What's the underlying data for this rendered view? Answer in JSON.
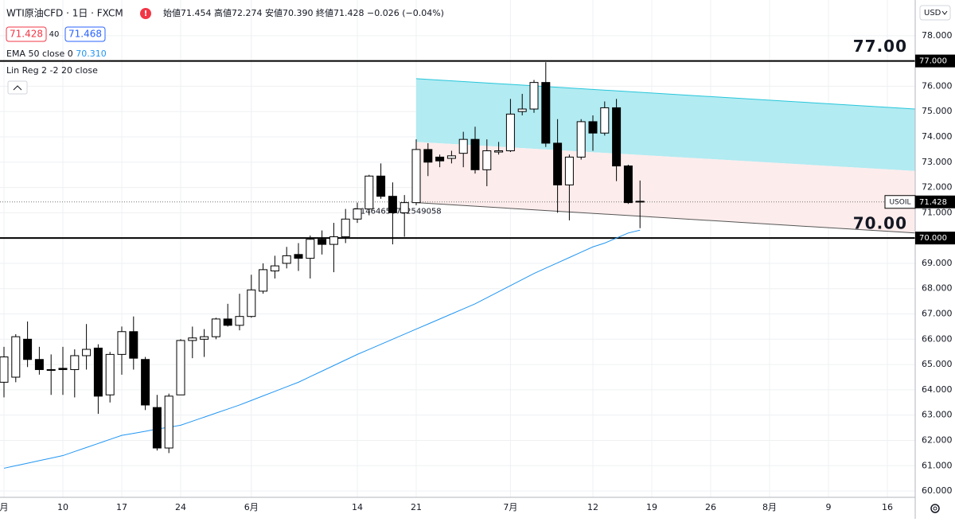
{
  "header": {
    "symbol": "WTI原油CFD · 1日 · FXCM",
    "ohlc": [
      {
        "label": "始値",
        "value": "71.454"
      },
      {
        "label": "高値",
        "value": "72.274"
      },
      {
        "label": "安値",
        "value": "70.390"
      },
      {
        "label": "終値",
        "value": "71.428"
      }
    ],
    "change": "−0.026 (−0.04%)",
    "bid": "71.428",
    "spread": "40",
    "ask": "71.468",
    "ema_label": "EMA 50 close 0",
    "ema_value": "70.310",
    "linreg_label": "Lin Reg 2 -2 20 close",
    "currency": "USD"
  },
  "chart_data": {
    "type": "candlestick",
    "categories": [
      "月",
      null,
      null,
      null,
      null,
      "10",
      null,
      null,
      null,
      null,
      "17",
      null,
      null,
      null,
      null,
      "24",
      null,
      null,
      null,
      null,
      null,
      "6月",
      null,
      null,
      null,
      null,
      null,
      null,
      null,
      null,
      "14",
      null,
      null,
      null,
      null,
      "21",
      null,
      null,
      null,
      null,
      null,
      null,
      null,
      "7月",
      null,
      null,
      null,
      null,
      null,
      null,
      "12",
      null,
      null,
      null,
      null,
      "19",
      null,
      null,
      null,
      null,
      "26",
      null,
      null,
      null,
      null,
      "8月",
      null,
      null,
      null,
      null,
      "9",
      null,
      null,
      null,
      null,
      "16"
    ],
    "open": [
      64.3,
      64.5,
      66.0,
      65.2,
      64.8,
      64.85,
      64.8,
      65.35,
      65.65,
      63.8,
      65.4,
      66.3,
      65.2,
      63.3,
      61.7,
      63.8,
      65.95,
      66.0,
      66.1,
      66.8,
      66.55,
      66.9,
      67.9,
      68.7,
      69.0,
      69.35,
      69.2,
      69.95,
      69.75,
      70.05,
      70.75,
      71.15,
      72.45,
      71.65,
      71.0,
      71.4,
      73.5,
      73.2,
      73.15,
      73.35,
      73.9,
      72.7,
      73.4,
      73.45,
      75.0,
      75.1,
      76.15,
      73.75,
      72.1,
      73.2,
      74.6,
      74.15,
      75.15,
      72.85,
      71.454,
      null,
      null,
      null,
      null,
      null,
      null,
      null,
      null,
      null,
      null,
      null,
      null,
      null,
      null,
      null,
      null,
      null,
      null,
      null,
      null,
      null
    ],
    "high": [
      65.7,
      66.2,
      66.7,
      65.7,
      65.4,
      65.7,
      65.6,
      66.6,
      65.8,
      65.5,
      66.5,
      66.9,
      65.3,
      63.8,
      63.85,
      66.0,
      66.5,
      66.4,
      66.85,
      67.4,
      67.8,
      68.55,
      69.0,
      69.3,
      69.65,
      69.8,
      70.1,
      70.3,
      70.6,
      71.15,
      71.4,
      72.5,
      72.95,
      72.2,
      71.7,
      73.9,
      73.75,
      73.3,
      73.45,
      74.2,
      74.4,
      73.9,
      73.8,
      75.5,
      75.7,
      76.25,
      76.95,
      74.7,
      73.3,
      74.7,
      74.85,
      75.4,
      75.5,
      72.9,
      72.274,
      null,
      null,
      null,
      null,
      null,
      null,
      null,
      null,
      null,
      null,
      null,
      null,
      null,
      null,
      null,
      null,
      null,
      null,
      null,
      null,
      null
    ],
    "low": [
      63.7,
      64.3,
      64.9,
      64.6,
      63.8,
      63.8,
      63.7,
      64.8,
      63.05,
      63.5,
      64.6,
      64.8,
      63.2,
      61.6,
      61.5,
      63.8,
      65.25,
      65.3,
      66.0,
      66.5,
      66.35,
      66.85,
      67.8,
      68.4,
      68.8,
      68.7,
      68.4,
      69.35,
      68.65,
      69.8,
      70.6,
      70.9,
      71.55,
      69.75,
      70.05,
      71.3,
      72.45,
      72.8,
      72.95,
      72.8,
      72.55,
      72.05,
      73.3,
      73.4,
      74.85,
      74.95,
      73.6,
      71.0,
      70.7,
      73.1,
      73.45,
      74.05,
      72.25,
      71.35,
      70.39,
      null,
      null,
      null,
      null,
      null,
      null,
      null,
      null,
      null,
      null,
      null,
      null,
      null,
      null,
      null,
      null,
      null,
      null,
      null,
      null,
      null
    ],
    "close": [
      65.3,
      66.1,
      65.2,
      64.8,
      64.8,
      64.8,
      65.35,
      65.6,
      63.75,
      65.4,
      66.3,
      65.25,
      63.4,
      61.7,
      63.75,
      65.95,
      66.05,
      66.1,
      66.8,
      66.55,
      66.9,
      67.95,
      68.75,
      68.9,
      69.3,
      69.2,
      69.95,
      69.75,
      70.05,
      70.75,
      71.15,
      72.45,
      71.65,
      71.0,
      71.4,
      73.5,
      73.0,
      73.05,
      73.25,
      73.9,
      72.7,
      73.45,
      73.45,
      74.9,
      75.1,
      76.15,
      73.75,
      72.1,
      73.2,
      74.6,
      74.15,
      75.15,
      72.85,
      71.4,
      71.428,
      null,
      null,
      null,
      null,
      null,
      null,
      null,
      null,
      null,
      null,
      null,
      null,
      null,
      null,
      null,
      null,
      null,
      null,
      null,
      null,
      null
    ],
    "up_color": "#ffffff",
    "down_color": "#000000",
    "ema": {
      "color": "#2196f3",
      "values": [
        60.9,
        61.0,
        61.1,
        61.2,
        61.3,
        61.4,
        61.56,
        61.72,
        61.88,
        62.04,
        62.2,
        62.28,
        62.36,
        62.45,
        62.52,
        62.6,
        62.76,
        62.92,
        63.08,
        63.24,
        63.4,
        63.58,
        63.76,
        63.94,
        64.12,
        64.3,
        64.52,
        64.74,
        64.96,
        65.18,
        65.4,
        65.6,
        65.8,
        66.0,
        66.2,
        66.4,
        66.6,
        66.8,
        67.0,
        67.2,
        67.4,
        67.64,
        67.88,
        68.12,
        68.36,
        68.6,
        68.81,
        69.02,
        69.23,
        69.44,
        69.65,
        69.8,
        70.0,
        70.2,
        70.31,
        null,
        null,
        null,
        null,
        null,
        null,
        null,
        null,
        null,
        null,
        null,
        null,
        null,
        null,
        null,
        null,
        null,
        null,
        null,
        null,
        null
      ]
    },
    "linreg": {
      "start": "21",
      "upper": [
        76.3,
        75.1
      ],
      "middle": [
        73.8,
        72.65
      ],
      "lower": [
        71.4,
        70.2
      ],
      "upper_fill": "#b2ebf2",
      "lower_fill": "#fdecec",
      "upper_color": "#26c6da",
      "lower_color": "#555555",
      "value_label": "0.1464656752549058"
    },
    "hlines": [
      {
        "value": 77,
        "label": "77.00",
        "axis_label": "77.000"
      },
      {
        "value": 70,
        "label": "70.00",
        "axis_label": "70.000"
      }
    ],
    "last": {
      "name": "USOIL",
      "value": 71.428
    },
    "ylim": [
      59.75,
      79.41
    ],
    "yticks": [
      {
        "value": 60,
        "label": "60.000"
      },
      {
        "value": 61,
        "label": "61.000"
      },
      {
        "value": 62,
        "label": "62.000"
      },
      {
        "value": 63,
        "label": "63.000"
      },
      {
        "value": 64,
        "label": "64.000"
      },
      {
        "value": 65,
        "label": "65.000"
      },
      {
        "value": 66,
        "label": "66.000"
      },
      {
        "value": 67,
        "label": "67.000"
      },
      {
        "value": 68,
        "label": "68.000"
      },
      {
        "value": 69,
        "label": "69.000"
      },
      {
        "value": 71,
        "label": "71.000"
      },
      {
        "value": 72,
        "label": "72.000"
      },
      {
        "value": 73,
        "label": "73.000"
      },
      {
        "value": 74,
        "label": "74.000"
      },
      {
        "value": 75,
        "label": "75.000"
      },
      {
        "value": 76,
        "label": "76.000"
      },
      {
        "value": 78,
        "label": "78.000"
      }
    ],
    "grid": true
  }
}
